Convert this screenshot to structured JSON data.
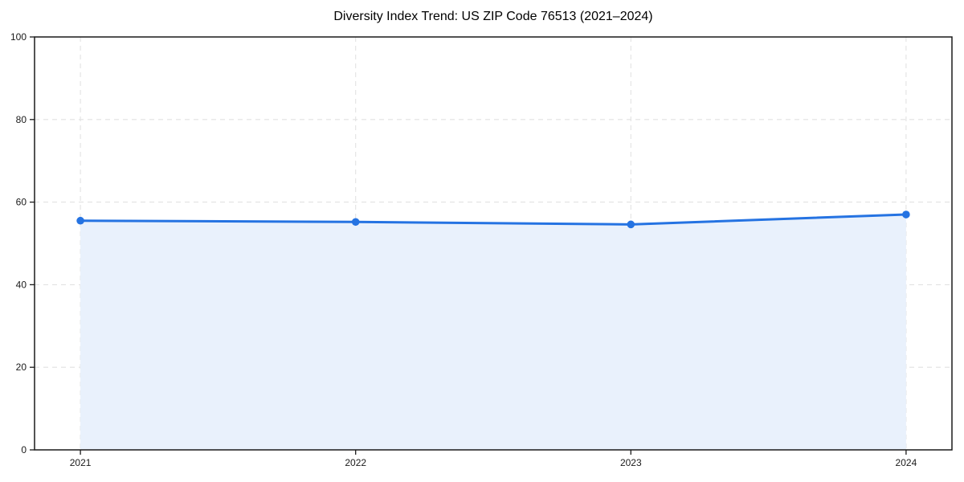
{
  "page": {
    "background": "#ffffff"
  },
  "chart_data": {
    "type": "area",
    "title": "Diversity Index Trend: US ZIP Code 76513 (2021–2024)",
    "categories": [
      "2021",
      "2022",
      "2023",
      "2024"
    ],
    "series": [
      {
        "name": "Diversity Index",
        "values": [
          55.5,
          55.2,
          54.6,
          57.0
        ]
      }
    ],
    "xlabel": "",
    "ylabel": "",
    "ylim": [
      0,
      100
    ],
    "yticks": [
      0,
      20,
      40,
      60,
      80,
      100
    ],
    "grid": "dashed",
    "grid_axes": "both",
    "legend": "none",
    "markers": "circle",
    "colors": {
      "line": "#2573e2",
      "marker": "#2573e2",
      "fill": "#e9f1fc",
      "grid": "#e2e2e2",
      "spine": "#1a1a1a",
      "tick_label": "#1a1a1a",
      "title": "#000000",
      "background": "#ffffff"
    }
  }
}
